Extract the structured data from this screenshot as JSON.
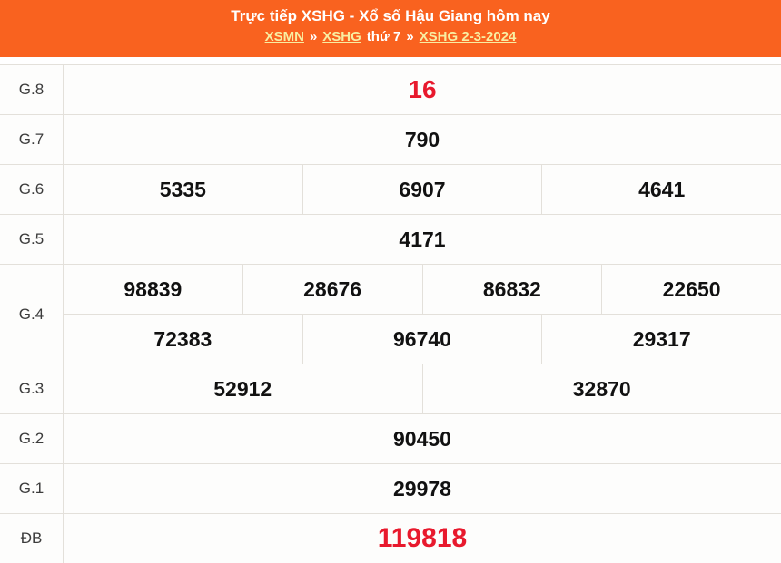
{
  "header": {
    "title": "Trực tiếp XSHG - Xổ số Hậu Giang hôm nay",
    "breadcrumb": [
      {
        "text": "XSMN",
        "link": true
      },
      {
        "text": "»",
        "link": false,
        "separator": true
      },
      {
        "text": "XSHG",
        "link": true
      },
      {
        "text": "thứ 7",
        "link": false
      },
      {
        "text": "»",
        "link": false,
        "separator": true
      },
      {
        "text": "XSHG 2-3-2024",
        "link": true
      }
    ]
  },
  "colors": {
    "header_background": "#f9621f",
    "header_text": "#ffffff",
    "breadcrumb_link": "#f8eea2",
    "number_text": "#111111",
    "highlight_red": "#e8192d",
    "border": "#e3e0da"
  },
  "results": {
    "rows": [
      {
        "id": "g8",
        "label": "G.8",
        "size": "large",
        "lines": [
          [
            "16"
          ]
        ]
      },
      {
        "id": "g7",
        "label": "G.7",
        "size": "normal",
        "lines": [
          [
            "790"
          ]
        ]
      },
      {
        "id": "g6",
        "label": "G.6",
        "size": "normal",
        "lines": [
          [
            "5335",
            "6907",
            "4641"
          ]
        ]
      },
      {
        "id": "g5",
        "label": "G.5",
        "size": "normal",
        "lines": [
          [
            "4171"
          ]
        ]
      },
      {
        "id": "g4",
        "label": "G.4",
        "size": "normal",
        "lines": [
          [
            "98839",
            "28676",
            "86832",
            "22650"
          ],
          [
            "72383",
            "96740",
            "29317"
          ]
        ]
      },
      {
        "id": "g3",
        "label": "G.3",
        "size": "normal",
        "lines": [
          [
            "52912",
            "32870"
          ]
        ]
      },
      {
        "id": "g2",
        "label": "G.2",
        "size": "normal",
        "lines": [
          [
            "90450"
          ]
        ]
      },
      {
        "id": "g1",
        "label": "G.1",
        "size": "normal",
        "lines": [
          [
            "29978"
          ]
        ]
      },
      {
        "id": "db",
        "label": "ĐB",
        "size": "xlarge",
        "lines": [
          [
            "119818"
          ]
        ]
      }
    ]
  }
}
